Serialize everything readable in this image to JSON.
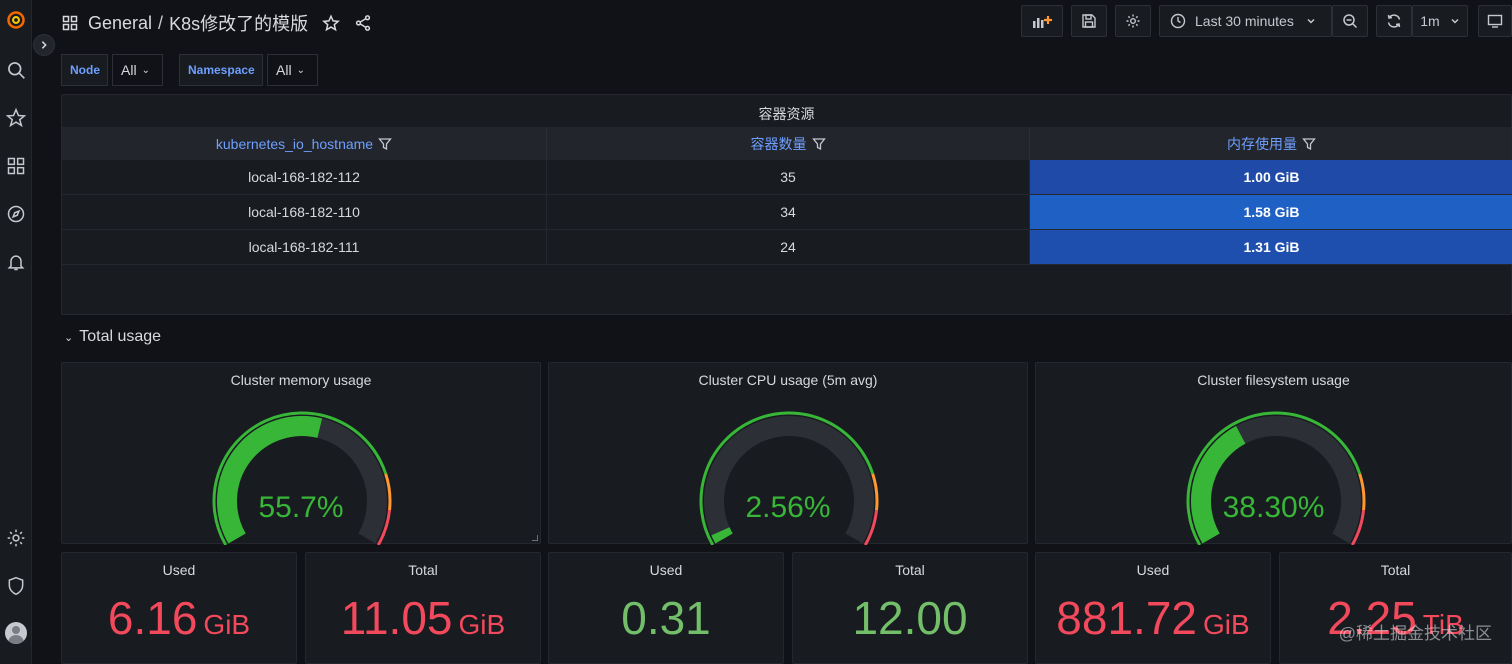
{
  "breadcrumb": {
    "folder": "General",
    "separator": "/",
    "dashboard": "K8s修改了的模版"
  },
  "toolbar": {
    "time_range": "Last 30 minutes",
    "refresh_interval": "1m"
  },
  "variables": [
    {
      "label": "Node",
      "value": "All"
    },
    {
      "label": "Namespace",
      "value": "All"
    }
  ],
  "table_panel": {
    "title": "容器资源",
    "columns": [
      "kubernetes_io_hostname",
      "容器数量",
      "内存使用量"
    ],
    "rows": [
      [
        "local-168-182-112",
        "35",
        "1.00 GiB"
      ],
      [
        "local-168-182-110",
        "34",
        "1.58 GiB"
      ],
      [
        "local-168-182-111",
        "24",
        "1.31 GiB"
      ]
    ],
    "mem_cell_colors": [
      "#1f4aa8",
      "#1f60c4",
      "#1e4fae"
    ]
  },
  "row_title": "Total usage",
  "gauges": [
    {
      "title": "Cluster memory usage",
      "value": "55.7%",
      "percent": 55.7
    },
    {
      "title": "Cluster CPU usage (5m avg)",
      "value": "2.56%",
      "percent": 2.56
    },
    {
      "title": "Cluster filesystem usage",
      "value": "38.30%",
      "percent": 38.3
    }
  ],
  "stats": [
    {
      "title": "Used",
      "value": "6.16",
      "unit": "GiB",
      "color": "#f2495c"
    },
    {
      "title": "Total",
      "value": "11.05",
      "unit": "GiB",
      "color": "#f2495c"
    },
    {
      "title": "Used",
      "value": "0.31",
      "unit": "",
      "color": "#73bf69"
    },
    {
      "title": "Total",
      "value": "12.00",
      "unit": "",
      "color": "#73bf69"
    },
    {
      "title": "Used",
      "value": "881.72",
      "unit": "GiB",
      "color": "#f2495c"
    },
    {
      "title": "Total",
      "value": "2.25",
      "unit": "TiB",
      "color": "#f2495c"
    }
  ],
  "colors": {
    "threshold_green": "#37b637",
    "threshold_orange": "#ff9830",
    "threshold_red": "#f2495c",
    "gauge_track": "#2c2f36"
  },
  "watermark": "@稀土掘金技术社区"
}
